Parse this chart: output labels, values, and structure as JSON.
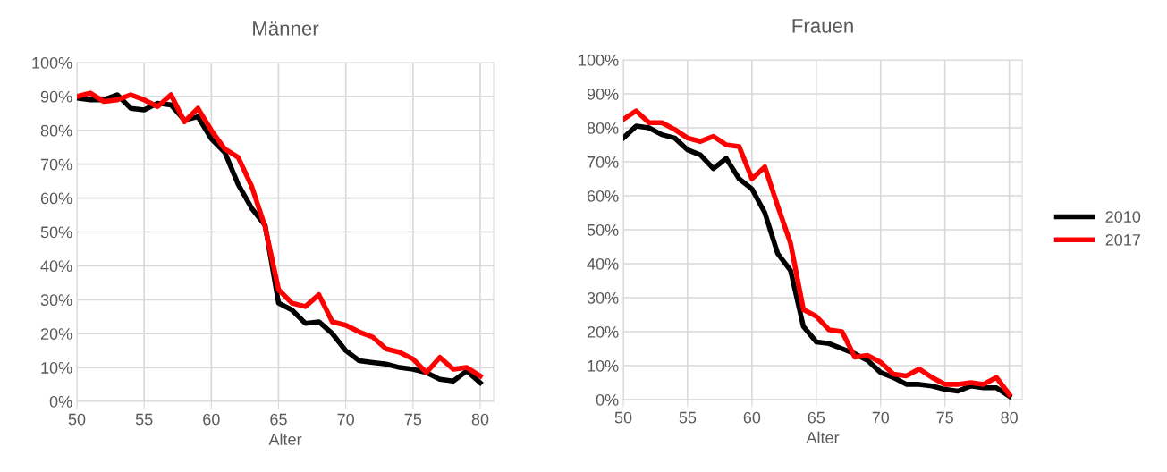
{
  "chart_data": [
    {
      "type": "line",
      "title": "Männer",
      "xlabel": "Alter",
      "xlim": [
        50,
        81
      ],
      "xticks": [
        50,
        55,
        60,
        65,
        70,
        75,
        80
      ],
      "ylim": [
        0,
        100
      ],
      "yticks": [
        {
          "value": 0,
          "label": "0%"
        },
        {
          "value": 10,
          "label": "10%"
        },
        {
          "value": 20,
          "label": "20%"
        },
        {
          "value": 30,
          "label": "30%"
        },
        {
          "value": 40,
          "label": "40%"
        },
        {
          "value": 50,
          "label": "50%"
        },
        {
          "value": 60,
          "label": "60%"
        },
        {
          "value": 70,
          "label": "70%"
        },
        {
          "value": 80,
          "label": "80%"
        },
        {
          "value": 90,
          "label": "90%"
        },
        {
          "value": 100,
          "label": "100%"
        }
      ],
      "grid": true,
      "legend": false,
      "x": [
        50,
        51,
        52,
        53,
        54,
        55,
        56,
        57,
        58,
        59,
        60,
        61,
        62,
        63,
        64,
        65,
        66,
        67,
        68,
        69,
        70,
        71,
        72,
        73,
        74,
        75,
        76,
        77,
        78,
        79,
        80
      ],
      "series": [
        {
          "color": "#000000",
          "values": [
            89.5,
            89,
            89,
            90.5,
            86.5,
            86,
            88,
            87.5,
            83,
            84,
            77.5,
            73.5,
            64,
            57,
            52,
            29,
            27,
            23,
            23.5,
            20,
            15,
            12,
            11.5,
            11,
            10,
            9.5,
            8.5,
            6.5,
            6,
            9,
            5.5
          ]
        },
        {
          "color": "#ff0000",
          "values": [
            90,
            91,
            88.5,
            89,
            90.5,
            89,
            87,
            90.5,
            82.5,
            86.5,
            80,
            74.5,
            72,
            63.5,
            51.5,
            33,
            29,
            28,
            31.5,
            23.5,
            22.5,
            20.5,
            19,
            15.5,
            14.5,
            12.5,
            8.5,
            13,
            9.5,
            10,
            7.5
          ]
        }
      ]
    },
    {
      "type": "line",
      "title": "Frauen",
      "xlabel": "Alter",
      "xlim": [
        50,
        81
      ],
      "xticks": [
        50,
        55,
        60,
        65,
        70,
        75,
        80
      ],
      "ylim": [
        0,
        100
      ],
      "yticks": [
        {
          "value": 0,
          "label": "0%"
        },
        {
          "value": 10,
          "label": "10%"
        },
        {
          "value": 20,
          "label": "20%"
        },
        {
          "value": 30,
          "label": "30%"
        },
        {
          "value": 40,
          "label": "40%"
        },
        {
          "value": 50,
          "label": "50%"
        },
        {
          "value": 60,
          "label": "60%"
        },
        {
          "value": 70,
          "label": "70%"
        },
        {
          "value": 80,
          "label": "80%"
        },
        {
          "value": 90,
          "label": "90%"
        },
        {
          "value": 100,
          "label": "100%"
        }
      ],
      "grid": true,
      "legend": "right",
      "x": [
        50,
        51,
        52,
        53,
        54,
        55,
        56,
        57,
        58,
        59,
        60,
        61,
        62,
        63,
        64,
        65,
        66,
        67,
        68,
        69,
        70,
        71,
        72,
        73,
        74,
        75,
        76,
        77,
        78,
        79,
        80
      ],
      "series": [
        {
          "name": "2010",
          "color": "#000000",
          "values": [
            77,
            80.5,
            80,
            78,
            77,
            73.5,
            72,
            68,
            71,
            65,
            62,
            55,
            43,
            38,
            21.5,
            17,
            16.5,
            15,
            13.5,
            11.5,
            8,
            6.5,
            4.5,
            4.5,
            4,
            3,
            2.5,
            4,
            3.5,
            3.5,
            1
          ]
        },
        {
          "name": "2017",
          "color": "#ff0000",
          "values": [
            82.5,
            85,
            81.5,
            81.5,
            79.5,
            77,
            76,
            77.5,
            75,
            74.5,
            65,
            68.5,
            57,
            46,
            26.5,
            24.5,
            20.5,
            20,
            12.5,
            13,
            11,
            7.5,
            7,
            9,
            6.5,
            4.5,
            4.5,
            5,
            4.5,
            6.5,
            1.5
          ]
        }
      ]
    }
  ]
}
